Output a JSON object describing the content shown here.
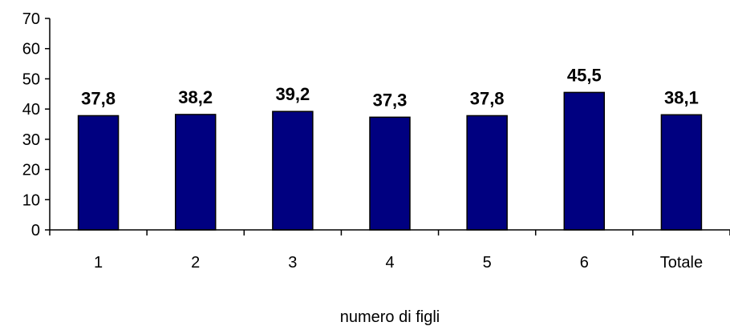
{
  "chart_data": {
    "type": "bar",
    "categories": [
      "1",
      "2",
      "3",
      "4",
      "5",
      "6",
      "Totale"
    ],
    "values": [
      37.8,
      38.2,
      39.2,
      37.3,
      37.8,
      45.5,
      38.1
    ],
    "data_labels": [
      "37,8",
      "38,2",
      "39,2",
      "37,3",
      "37,8",
      "45,5",
      "38,1"
    ],
    "title": "",
    "xlabel": "numero di figli",
    "ylabel": "",
    "ylim": [
      0,
      70
    ],
    "yticks": [
      0,
      10,
      20,
      30,
      40,
      50,
      60,
      70
    ],
    "grid": false,
    "legend": "none",
    "bar_color": "#000080"
  }
}
